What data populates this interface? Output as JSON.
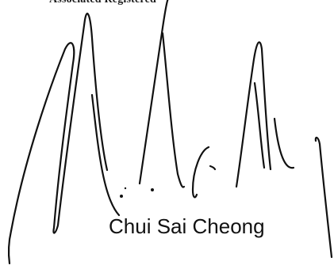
{
  "document": {
    "header_text": "Associated Registered",
    "signatory_name": "Chui Sai Cheong"
  },
  "colors": {
    "ink": "#111111",
    "background": "#ffffff"
  }
}
